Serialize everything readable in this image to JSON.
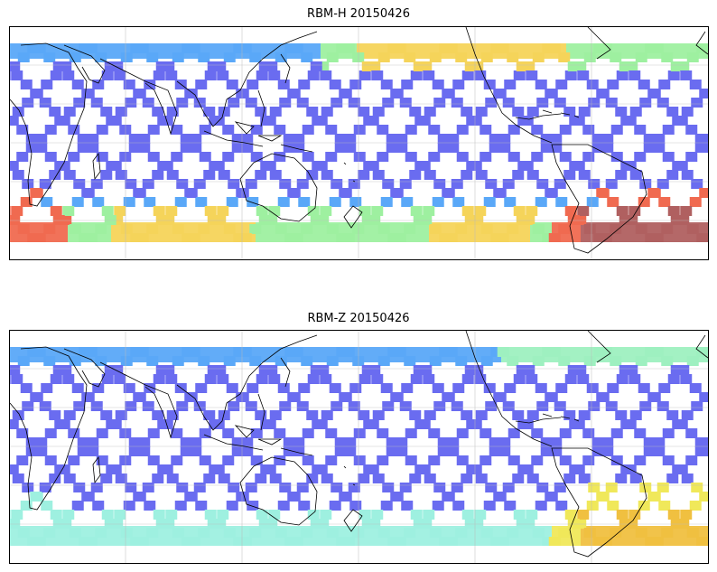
{
  "panels": [
    {
      "title": "RBM-H 20150426",
      "colors": {
        "base": "#6a6cf0",
        "equator_band": "#5aa8f8",
        "north_hot": "#f5d45a",
        "south_warm": "#9ef0a0",
        "south_hot": "#f06a50",
        "south_extreme": "#b06060"
      }
    },
    {
      "title": "RBM-Z 20150426",
      "colors": {
        "base": "#6a6cf0",
        "equator_band": "#5aa8f8",
        "north_hot": "#9ef0c0",
        "south_warm": "#9ef0e0",
        "south_hot": "#f0e85a",
        "south_extreme": "#f0c040"
      }
    }
  ]
}
